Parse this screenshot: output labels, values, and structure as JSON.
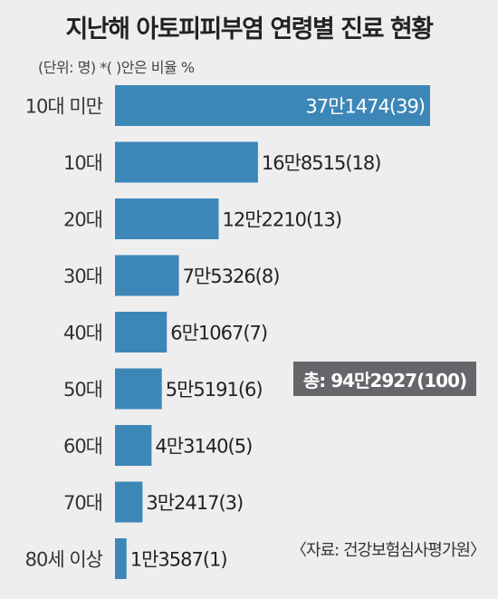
{
  "chart_data": {
    "type": "bar",
    "orientation": "horizontal",
    "title": "지난해 아토피피부염 연령별 진료 현황",
    "subtitle": "(단위: 명) *( )안은 비율 %",
    "categories": [
      "10대 미만",
      "10대",
      "20대",
      "30대",
      "40대",
      "50대",
      "60대",
      "70대",
      "80세 이상"
    ],
    "values": [
      371474,
      168515,
      122210,
      75326,
      61067,
      55191,
      43140,
      32417,
      13587
    ],
    "value_labels": [
      "37만1474(39)",
      "16만8515(18)",
      "12만2210(13)",
      "7만5326(8)",
      "6만1067(7)",
      "5만5191(6)",
      "4만3140(5)",
      "3만2417(3)",
      "1만3587(1)"
    ],
    "percent": [
      39,
      18,
      13,
      8,
      7,
      6,
      5,
      3,
      1
    ],
    "total_label": "총: 94만2927(100)",
    "source": "〈자료: 건강보험심사평가원〉",
    "xlim": [
      0,
      371474
    ],
    "bar_color": "#3d87b8",
    "grid": false,
    "legend": "none"
  }
}
